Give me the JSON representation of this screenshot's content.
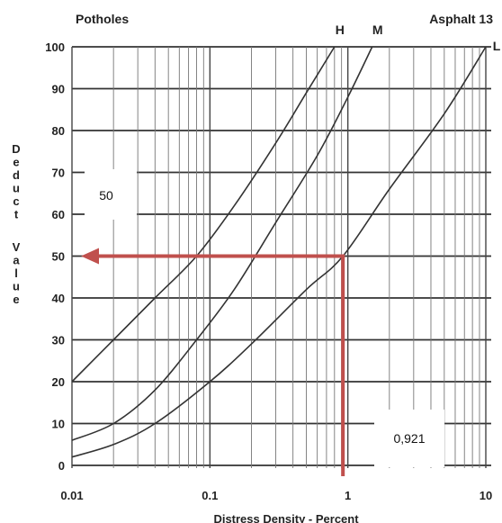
{
  "chart_data": {
    "type": "line",
    "title_left": "Potholes",
    "title_right": "Asphalt 13",
    "xlabel": "Distress Density - Percent",
    "ylabel": "Deduct Value",
    "x_scale": "log",
    "xlim": [
      0.01,
      10
    ],
    "ylim": [
      0,
      100
    ],
    "x_ticks": [
      "0.01",
      "0.1",
      "1",
      "10"
    ],
    "y_ticks": [
      "0",
      "10",
      "20",
      "30",
      "40",
      "50",
      "60",
      "70",
      "80",
      "90",
      "100"
    ],
    "grid": true,
    "series": [
      {
        "name": "H",
        "x": [
          0.01,
          0.02,
          0.04,
          0.08,
          0.15,
          0.3,
          0.5,
          0.8
        ],
        "y": [
          20,
          30,
          40,
          50,
          62,
          77,
          89,
          100
        ]
      },
      {
        "name": "M",
        "x": [
          0.01,
          0.02,
          0.04,
          0.08,
          0.15,
          0.3,
          0.6,
          1.0,
          1.5
        ],
        "y": [
          6,
          10,
          18,
          30,
          42,
          58,
          74,
          88,
          100
        ]
      },
      {
        "name": "L",
        "x": [
          0.01,
          0.02,
          0.04,
          0.1,
          0.2,
          0.5,
          0.921,
          2,
          5,
          10
        ],
        "y": [
          2,
          5,
          10,
          20,
          29,
          42,
          50,
          66,
          84,
          100
        ]
      }
    ],
    "annotations": [
      {
        "label": "50",
        "value": 50,
        "axis": "y"
      },
      {
        "label": "0,921",
        "value": 0.921,
        "axis": "x"
      }
    ],
    "line_color": "#333333",
    "arrow_color": "#c0504d"
  }
}
